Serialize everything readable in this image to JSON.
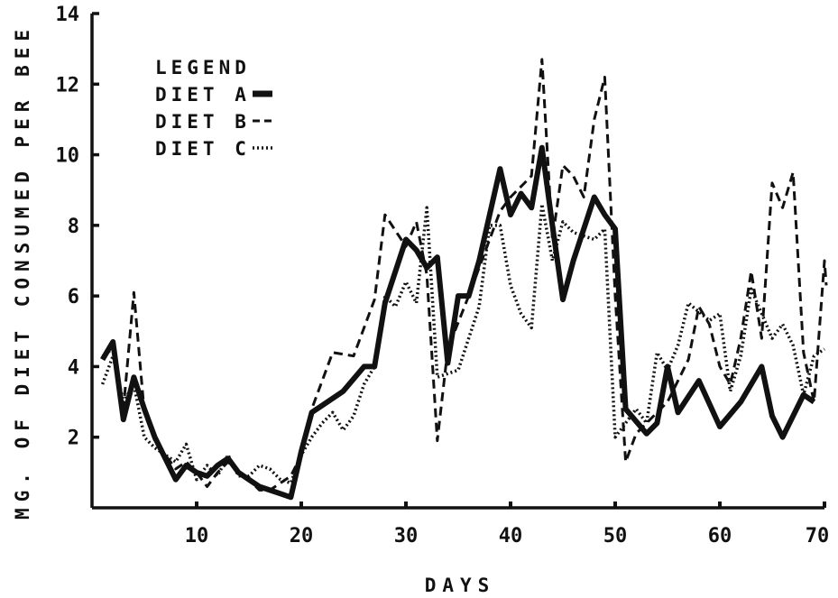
{
  "chart_data": {
    "type": "line",
    "title": "",
    "xlabel": "DAYS",
    "ylabel": "MG. OF DIET CONSUMED PER BEE",
    "xlim": [
      0,
      70
    ],
    "ylim": [
      0,
      14
    ],
    "xticks": [
      10,
      20,
      30,
      40,
      50,
      60,
      70
    ],
    "yticks": [
      2,
      4,
      6,
      8,
      10,
      12,
      14
    ],
    "grid": false,
    "legend": {
      "title": "LEGEND",
      "placement": "top-left",
      "entries": [
        "DIET  A",
        "DIET  B",
        "DIET  C"
      ]
    },
    "series": [
      {
        "name": "DIET  A",
        "style": "solid-thick",
        "points": [
          [
            1,
            4.2
          ],
          [
            2,
            4.7
          ],
          [
            3,
            2.5
          ],
          [
            4,
            3.7
          ],
          [
            5,
            2.8
          ],
          [
            6,
            2.0
          ],
          [
            7,
            1.4
          ],
          [
            8,
            0.8
          ],
          [
            9,
            1.2
          ],
          [
            10,
            1.0
          ],
          [
            11,
            0.9
          ],
          [
            12,
            1.2
          ],
          [
            13,
            1.4
          ],
          [
            14,
            1.0
          ],
          [
            15,
            0.8
          ],
          [
            16,
            0.6
          ],
          [
            17,
            0.5
          ],
          [
            18,
            0.4
          ],
          [
            19,
            0.3
          ],
          [
            20,
            1.6
          ],
          [
            21,
            2.7
          ],
          [
            22,
            2.9
          ],
          [
            24,
            3.3
          ],
          [
            26,
            4.0
          ],
          [
            27,
            4.0
          ],
          [
            28,
            5.8
          ],
          [
            30,
            7.6
          ],
          [
            31,
            7.3
          ],
          [
            32,
            6.8
          ],
          [
            33,
            7.1
          ],
          [
            34,
            4.1
          ],
          [
            35,
            6.0
          ],
          [
            36,
            6.0
          ],
          [
            37,
            7.0
          ],
          [
            39,
            9.6
          ],
          [
            40,
            8.3
          ],
          [
            41,
            8.9
          ],
          [
            42,
            8.5
          ],
          [
            43,
            10.2
          ],
          [
            44,
            8.0
          ],
          [
            45,
            5.9
          ],
          [
            46,
            7.0
          ],
          [
            48,
            8.8
          ],
          [
            49,
            8.3
          ],
          [
            50,
            7.9
          ],
          [
            51,
            2.8
          ],
          [
            53,
            2.1
          ],
          [
            54,
            2.4
          ],
          [
            55,
            4.0
          ],
          [
            56,
            2.7
          ],
          [
            58,
            3.6
          ],
          [
            60,
            2.3
          ],
          [
            62,
            3.0
          ],
          [
            63,
            3.5
          ],
          [
            64,
            4.0
          ],
          [
            65,
            2.6
          ],
          [
            66,
            2.0
          ],
          [
            67,
            2.6
          ],
          [
            68,
            3.2
          ],
          [
            69,
            3.0
          ]
        ]
      },
      {
        "name": "DIET  B",
        "style": "dashed",
        "points": [
          [
            1,
            4.3
          ],
          [
            2,
            4.5
          ],
          [
            3,
            2.8
          ],
          [
            4,
            6.1
          ],
          [
            5,
            2.7
          ],
          [
            6,
            1.9
          ],
          [
            7,
            1.5
          ],
          [
            8,
            1.1
          ],
          [
            9,
            1.3
          ],
          [
            10,
            1.0
          ],
          [
            11,
            0.6
          ],
          [
            12,
            1.0
          ],
          [
            13,
            1.3
          ],
          [
            14,
            1.0
          ],
          [
            15,
            0.8
          ],
          [
            16,
            0.5
          ],
          [
            17,
            0.5
          ],
          [
            18,
            0.7
          ],
          [
            19,
            0.9
          ],
          [
            20,
            1.5
          ],
          [
            21,
            2.8
          ],
          [
            23,
            4.4
          ],
          [
            25,
            4.3
          ],
          [
            27,
            5.9
          ],
          [
            28,
            8.3
          ],
          [
            30,
            7.4
          ],
          [
            31,
            8.1
          ],
          [
            32,
            6.6
          ],
          [
            33,
            1.9
          ],
          [
            34,
            4.5
          ],
          [
            36,
            6.0
          ],
          [
            38,
            7.6
          ],
          [
            39,
            8.4
          ],
          [
            40,
            8.8
          ],
          [
            41,
            9.1
          ],
          [
            42,
            9.4
          ],
          [
            43,
            12.7
          ],
          [
            44,
            7.6
          ],
          [
            45,
            9.7
          ],
          [
            46,
            9.4
          ],
          [
            47,
            8.8
          ],
          [
            48,
            11.0
          ],
          [
            49,
            12.2
          ],
          [
            50,
            6.0
          ],
          [
            51,
            1.3
          ],
          [
            52,
            2.1
          ],
          [
            53,
            2.4
          ],
          [
            55,
            3.0
          ],
          [
            57,
            4.2
          ],
          [
            58,
            5.7
          ],
          [
            59,
            5.2
          ],
          [
            60,
            4.0
          ],
          [
            61,
            3.5
          ],
          [
            62,
            4.8
          ],
          [
            63,
            6.7
          ],
          [
            64,
            4.8
          ],
          [
            65,
            9.2
          ],
          [
            66,
            8.5
          ],
          [
            67,
            9.5
          ],
          [
            68,
            4.4
          ],
          [
            69,
            3.0
          ],
          [
            70,
            7.0
          ],
          [
            71,
            6.3
          ]
        ]
      },
      {
        "name": "DIET  C",
        "style": "dotted",
        "points": [
          [
            1,
            3.5
          ],
          [
            2,
            4.3
          ],
          [
            3,
            3.0
          ],
          [
            4,
            3.5
          ],
          [
            5,
            2.0
          ],
          [
            6,
            1.7
          ],
          [
            7,
            1.5
          ],
          [
            8,
            1.3
          ],
          [
            9,
            1.8
          ],
          [
            10,
            0.8
          ],
          [
            11,
            1.2
          ],
          [
            12,
            0.9
          ],
          [
            13,
            1.5
          ],
          [
            14,
            0.9
          ],
          [
            15,
            0.9
          ],
          [
            16,
            1.2
          ],
          [
            17,
            1.1
          ],
          [
            18,
            0.8
          ],
          [
            19,
            0.7
          ],
          [
            20,
            1.5
          ],
          [
            21,
            2.0
          ],
          [
            22,
            2.4
          ],
          [
            23,
            2.7
          ],
          [
            24,
            2.2
          ],
          [
            25,
            2.6
          ],
          [
            26,
            3.5
          ],
          [
            27,
            4.0
          ],
          [
            28,
            6.0
          ],
          [
            29,
            5.7
          ],
          [
            30,
            6.4
          ],
          [
            31,
            5.8
          ],
          [
            32,
            8.5
          ],
          [
            33,
            3.7
          ],
          [
            35,
            3.9
          ],
          [
            37,
            5.7
          ],
          [
            38,
            8.0
          ],
          [
            39,
            8.0
          ],
          [
            40,
            6.3
          ],
          [
            41,
            5.5
          ],
          [
            42,
            5.1
          ],
          [
            43,
            8.6
          ],
          [
            44,
            7.0
          ],
          [
            45,
            8.1
          ],
          [
            46,
            7.8
          ],
          [
            48,
            7.6
          ],
          [
            49,
            7.9
          ],
          [
            50,
            2.0
          ],
          [
            52,
            2.8
          ],
          [
            53,
            2.4
          ],
          [
            54,
            4.4
          ],
          [
            55,
            3.9
          ],
          [
            56,
            4.6
          ],
          [
            57,
            5.8
          ],
          [
            59,
            5.3
          ],
          [
            60,
            5.5
          ],
          [
            61,
            3.3
          ],
          [
            62,
            4.3
          ],
          [
            63,
            6.2
          ],
          [
            64,
            5.5
          ],
          [
            65,
            4.8
          ],
          [
            66,
            5.2
          ],
          [
            67,
            4.6
          ],
          [
            68,
            3.2
          ],
          [
            69,
            4.3
          ],
          [
            70,
            4.5
          ]
        ]
      }
    ]
  }
}
